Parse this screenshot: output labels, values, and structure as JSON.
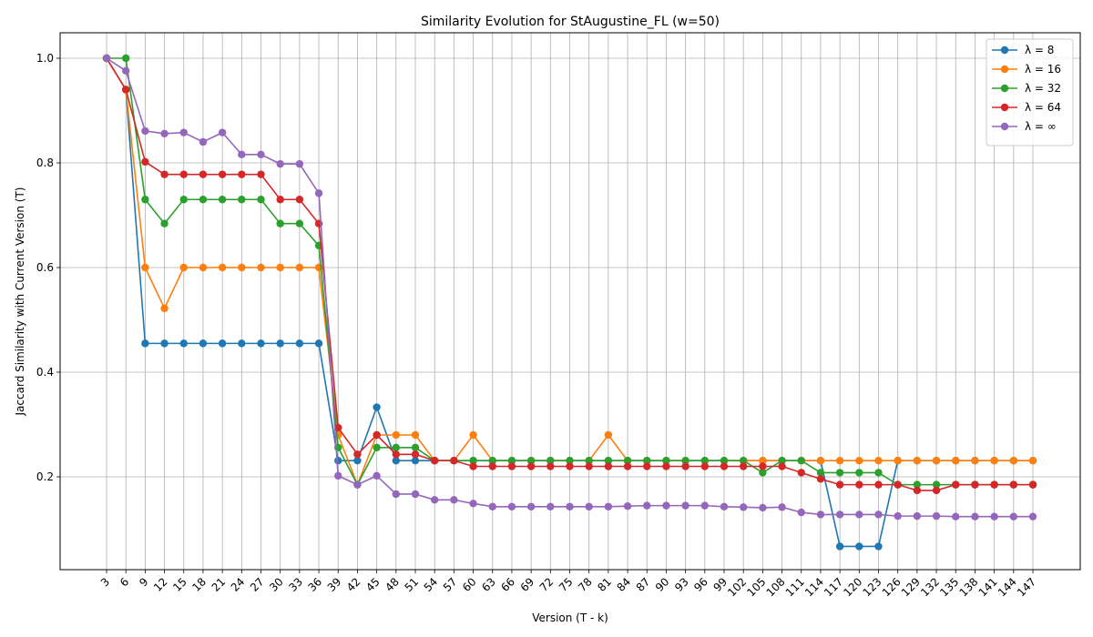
{
  "chart_data": {
    "type": "line",
    "title": "Similarity Evolution for StAugustine_FL (w=50)",
    "xlabel": "Version (T - k)",
    "ylabel": "Jaccard Similarity with Current Version (T)",
    "ylim": [
      0.0,
      1.0
    ],
    "yticks": [
      "0.2",
      "0.4",
      "0.6",
      "0.8",
      "1.0"
    ],
    "grid": true,
    "legend_position": "top-right",
    "categories": [
      "3",
      "6",
      "9",
      "12",
      "15",
      "18",
      "21",
      "24",
      "27",
      "30",
      "33",
      "36",
      "39",
      "42",
      "45",
      "48",
      "51",
      "54",
      "57",
      "60",
      "63",
      "66",
      "69",
      "72",
      "75",
      "78",
      "81",
      "84",
      "87",
      "90",
      "93",
      "96",
      "99",
      "102",
      "105",
      "108",
      "111",
      "114",
      "117",
      "120",
      "123",
      "126",
      "129",
      "132",
      "135",
      "138",
      "141",
      "144",
      "147"
    ],
    "series": [
      {
        "name": "λ = 8",
        "color": "#1f77b4",
        "values": [
          1.0,
          0.94,
          0.455,
          0.455,
          0.455,
          0.455,
          0.455,
          0.455,
          0.455,
          0.455,
          0.455,
          0.455,
          0.231,
          0.231,
          0.333,
          0.231,
          0.231,
          0.231,
          0.231,
          0.231,
          0.231,
          0.231,
          0.231,
          0.231,
          0.231,
          0.231,
          0.231,
          0.231,
          0.231,
          0.231,
          0.231,
          0.231,
          0.231,
          0.231,
          0.231,
          0.231,
          0.231,
          0.231,
          0.067,
          0.067,
          0.067,
          0.231,
          0.231,
          0.231,
          0.231,
          0.231,
          0.231,
          0.231,
          0.231
        ]
      },
      {
        "name": "λ = 16",
        "color": "#ff7f0e",
        "values": [
          1.0,
          0.94,
          0.6,
          0.522,
          0.6,
          0.6,
          0.6,
          0.6,
          0.6,
          0.6,
          0.6,
          0.6,
          0.28,
          0.185,
          0.28,
          0.28,
          0.28,
          0.231,
          0.231,
          0.28,
          0.231,
          0.231,
          0.231,
          0.231,
          0.231,
          0.231,
          0.28,
          0.231,
          0.231,
          0.231,
          0.231,
          0.231,
          0.231,
          0.231,
          0.231,
          0.231,
          0.231,
          0.231,
          0.231,
          0.231,
          0.231,
          0.231,
          0.231,
          0.231,
          0.231,
          0.231,
          0.231,
          0.231,
          0.231
        ]
      },
      {
        "name": "λ = 32",
        "color": "#2ca02c",
        "values": [
          1.0,
          1.0,
          0.73,
          0.684,
          0.73,
          0.73,
          0.73,
          0.73,
          0.73,
          0.684,
          0.684,
          0.642,
          0.256,
          0.185,
          0.256,
          0.256,
          0.256,
          0.231,
          0.231,
          0.231,
          0.231,
          0.231,
          0.231,
          0.231,
          0.231,
          0.231,
          0.231,
          0.231,
          0.231,
          0.231,
          0.231,
          0.231,
          0.231,
          0.231,
          0.208,
          0.231,
          0.231,
          0.208,
          0.208,
          0.208,
          0.208,
          0.185,
          0.185,
          0.185,
          0.185,
          0.185,
          0.185,
          0.185,
          0.185
        ]
      },
      {
        "name": "λ = 64",
        "color": "#d62728",
        "values": [
          1.0,
          0.94,
          0.802,
          0.778,
          0.778,
          0.778,
          0.778,
          0.778,
          0.778,
          0.73,
          0.73,
          0.684,
          0.294,
          0.243,
          0.28,
          0.243,
          0.243,
          0.231,
          0.231,
          0.22,
          0.22,
          0.22,
          0.22,
          0.22,
          0.22,
          0.22,
          0.22,
          0.22,
          0.22,
          0.22,
          0.22,
          0.22,
          0.22,
          0.22,
          0.22,
          0.22,
          0.208,
          0.196,
          0.185,
          0.185,
          0.185,
          0.185,
          0.174,
          0.174,
          0.185,
          0.185,
          0.185,
          0.185,
          0.185
        ]
      },
      {
        "name": "λ = ∞",
        "color": "#9467bd",
        "values": [
          1.0,
          0.976,
          0.861,
          0.856,
          0.858,
          0.84,
          0.858,
          0.816,
          0.816,
          0.798,
          0.798,
          0.742,
          0.202,
          0.185,
          0.202,
          0.167,
          0.167,
          0.156,
          0.156,
          0.149,
          0.143,
          0.143,
          0.143,
          0.143,
          0.143,
          0.143,
          0.143,
          0.144,
          0.145,
          0.145,
          0.145,
          0.145,
          0.143,
          0.142,
          0.141,
          0.142,
          0.132,
          0.128,
          0.128,
          0.128,
          0.128,
          0.125,
          0.125,
          0.125,
          0.124,
          0.124,
          0.124,
          0.124,
          0.124
        ]
      }
    ]
  }
}
